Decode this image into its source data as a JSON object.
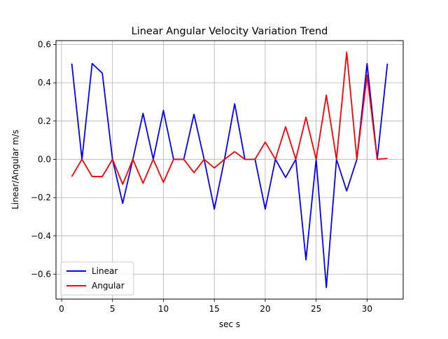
{
  "chart_data": {
    "type": "line",
    "title": "Linear Angular Velocity Variation Trend",
    "xlabel": "sec s",
    "ylabel": "Linear/Angular m/s",
    "xlim": [
      -0.55,
      33.55
    ],
    "ylim": [
      -0.73,
      0.62
    ],
    "xticks": [
      0,
      5,
      10,
      15,
      20,
      25,
      30
    ],
    "yticks": [
      -0.6,
      -0.4,
      -0.2,
      0.0,
      0.2,
      0.4,
      0.6
    ],
    "xtick_labels": [
      "0",
      "5",
      "10",
      "15",
      "20",
      "25",
      "30"
    ],
    "ytick_labels": [
      "−0.6",
      "−0.4",
      "−0.2",
      "0.0",
      "0.2",
      "0.4",
      "0.6"
    ],
    "grid": true,
    "legend": {
      "placement": "lower-left",
      "entries": [
        "Linear",
        "Angular"
      ]
    },
    "series": [
      {
        "name": "Linear",
        "color": "#0000ff",
        "x": [
          1,
          2,
          3,
          4,
          5,
          6,
          7,
          8,
          9,
          10,
          11,
          12,
          13,
          14,
          15,
          16,
          17,
          18,
          19,
          20,
          21,
          22,
          23,
          24,
          25,
          26,
          27,
          28,
          29,
          30,
          31,
          32
        ],
        "y": [
          0.5,
          0.0,
          0.5,
          0.45,
          0.0,
          -0.23,
          0.0,
          0.24,
          0.0,
          0.255,
          0.0,
          0.0,
          0.235,
          0.0,
          -0.26,
          0.0,
          0.29,
          0.0,
          0.0,
          -0.26,
          0.0,
          -0.095,
          0.0,
          -0.525,
          0.0,
          -0.67,
          0.0,
          -0.165,
          0.0,
          0.5,
          0.0,
          0.5
        ]
      },
      {
        "name": "Angular",
        "color": "#ff0000",
        "x": [
          1,
          2,
          3,
          4,
          5,
          6,
          7,
          8,
          9,
          10,
          11,
          12,
          13,
          14,
          15,
          16,
          17,
          18,
          19,
          20,
          21,
          22,
          23,
          24,
          25,
          26,
          27,
          28,
          29,
          30,
          31,
          32
        ],
        "y": [
          -0.09,
          0.0,
          -0.09,
          -0.09,
          0.0,
          -0.13,
          0.0,
          -0.125,
          0.0,
          -0.12,
          0.0,
          0.0,
          -0.07,
          0.0,
          -0.045,
          0.0,
          0.04,
          0.0,
          0.0,
          0.09,
          0.0,
          0.17,
          0.0,
          0.22,
          0.0,
          0.335,
          0.0,
          0.56,
          0.0,
          0.44,
          0.0,
          0.005
        ]
      }
    ]
  }
}
